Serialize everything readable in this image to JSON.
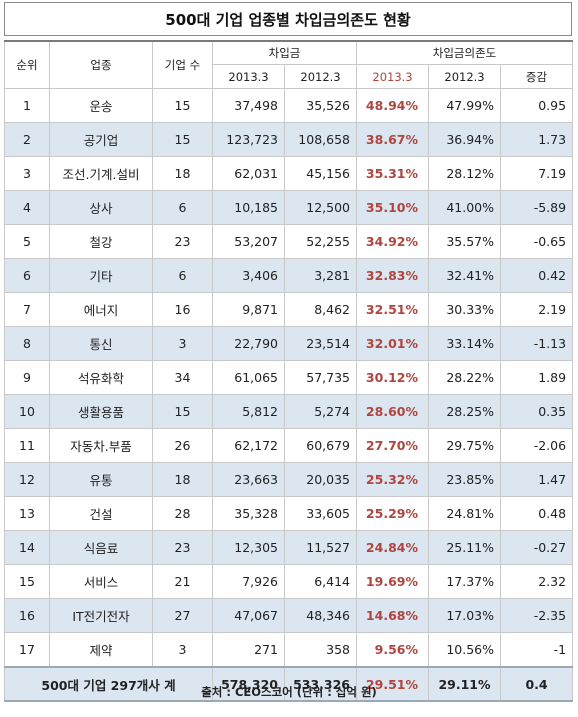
{
  "title": "500대 기업 업종별 차입금의존도 현황",
  "headers": {
    "rank": "순위",
    "industry": "업종",
    "count": "기업 수",
    "borrowings": "차입금",
    "dependency": "차입금의존도",
    "y2013": "2013.3",
    "y2012": "2012.3",
    "change": "증감"
  },
  "rows": [
    {
      "rank": "1",
      "industry": "운송",
      "count": "15",
      "b2013": "37,498",
      "b2012": "35,526",
      "d2013": "48.94%",
      "d2012": "47.99%",
      "change": "0.95"
    },
    {
      "rank": "2",
      "industry": "공기업",
      "count": "15",
      "b2013": "123,723",
      "b2012": "108,658",
      "d2013": "38.67%",
      "d2012": "36.94%",
      "change": "1.73"
    },
    {
      "rank": "3",
      "industry": "조선.기계.설비",
      "count": "18",
      "b2013": "62,031",
      "b2012": "45,156",
      "d2013": "35.31%",
      "d2012": "28.12%",
      "change": "7.19"
    },
    {
      "rank": "4",
      "industry": "상사",
      "count": "6",
      "b2013": "10,185",
      "b2012": "12,500",
      "d2013": "35.10%",
      "d2012": "41.00%",
      "change": "-5.89"
    },
    {
      "rank": "5",
      "industry": "철강",
      "count": "23",
      "b2013": "53,207",
      "b2012": "52,255",
      "d2013": "34.92%",
      "d2012": "35.57%",
      "change": "-0.65"
    },
    {
      "rank": "6",
      "industry": "기타",
      "count": "6",
      "b2013": "3,406",
      "b2012": "3,281",
      "d2013": "32.83%",
      "d2012": "32.41%",
      "change": "0.42"
    },
    {
      "rank": "7",
      "industry": "에너지",
      "count": "16",
      "b2013": "9,871",
      "b2012": "8,462",
      "d2013": "32.51%",
      "d2012": "30.33%",
      "change": "2.19"
    },
    {
      "rank": "8",
      "industry": "통신",
      "count": "3",
      "b2013": "22,790",
      "b2012": "23,514",
      "d2013": "32.01%",
      "d2012": "33.14%",
      "change": "-1.13"
    },
    {
      "rank": "9",
      "industry": "석유화학",
      "count": "34",
      "b2013": "61,065",
      "b2012": "57,735",
      "d2013": "30.12%",
      "d2012": "28.22%",
      "change": "1.89"
    },
    {
      "rank": "10",
      "industry": "생활용품",
      "count": "15",
      "b2013": "5,812",
      "b2012": "5,274",
      "d2013": "28.60%",
      "d2012": "28.25%",
      "change": "0.35"
    },
    {
      "rank": "11",
      "industry": "자동차.부품",
      "count": "26",
      "b2013": "62,172",
      "b2012": "60,679",
      "d2013": "27.70%",
      "d2012": "29.75%",
      "change": "-2.06"
    },
    {
      "rank": "12",
      "industry": "유통",
      "count": "18",
      "b2013": "23,663",
      "b2012": "20,035",
      "d2013": "25.32%",
      "d2012": "23.85%",
      "change": "1.47"
    },
    {
      "rank": "13",
      "industry": "건설",
      "count": "28",
      "b2013": "35,328",
      "b2012": "33,605",
      "d2013": "25.29%",
      "d2012": "24.81%",
      "change": "0.48"
    },
    {
      "rank": "14",
      "industry": "식음료",
      "count": "23",
      "b2013": "12,305",
      "b2012": "11,527",
      "d2013": "24.84%",
      "d2012": "25.11%",
      "change": "-0.27"
    },
    {
      "rank": "15",
      "industry": "서비스",
      "count": "21",
      "b2013": "7,926",
      "b2012": "6,414",
      "d2013": "19.69%",
      "d2012": "17.37%",
      "change": "2.32"
    },
    {
      "rank": "16",
      "industry": "IT전기전자",
      "count": "27",
      "b2013": "47,067",
      "b2012": "48,346",
      "d2013": "14.68%",
      "d2012": "17.03%",
      "change": "-2.35"
    },
    {
      "rank": "17",
      "industry": "제약",
      "count": "3",
      "b2013": "271",
      "b2012": "358",
      "d2013": "9.56%",
      "d2012": "10.56%",
      "change": "-1"
    }
  ],
  "total": {
    "label": "500대 기업 297개사 계",
    "b2013": "578,320",
    "b2012": "533,326",
    "d2013": "29.51%",
    "d2012": "29.11%",
    "change": "0.4"
  },
  "source": "출처 : CEO스코어 (단위 : 십억 원)",
  "colors": {
    "highlight_red": "#b0453f",
    "alt_row_blue": "#dce6f1"
  }
}
